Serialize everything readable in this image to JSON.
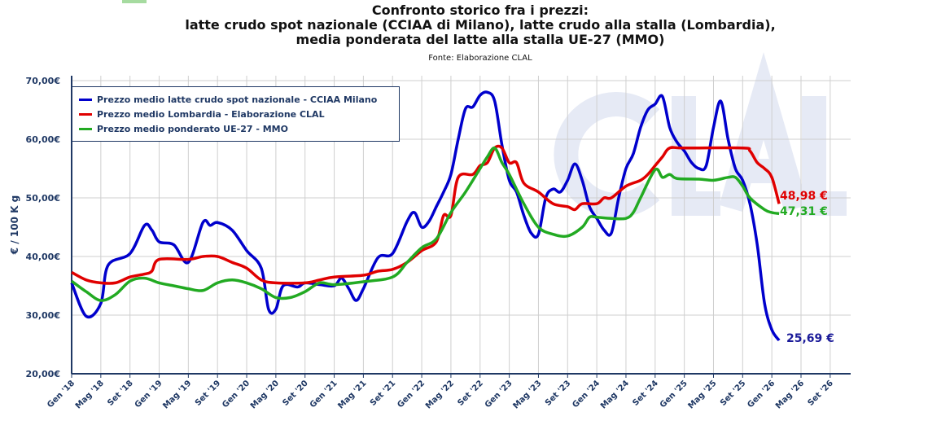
{
  "title_lines": [
    "Confronto storico fra i prezzi:",
    "latte crudo spot nazionale (CCIAA di Milano), latte crudo alla stalla (Lombardia),",
    "media ponderata del latte alla stalla UE-27 (MMO)"
  ],
  "source": "Fonte: Elaborazione CLAL",
  "watermark": "CLAL",
  "chart_data": {
    "type": "line",
    "title": "Confronto storico fra i prezzi: latte crudo spot nazionale (CCIAA di Milano), latte crudo alla stalla (Lombardia), media ponderata del latte alla stalla UE-27 (MMO)",
    "ylabel": "€ / 100 K g",
    "xlabel": "",
    "ylim": [
      20,
      70
    ],
    "xlim": [
      "2018-01",
      "2026-12"
    ],
    "grid": true,
    "legend_position": "top-left",
    "y_ticks": [
      "20,00€",
      "30,00€",
      "40,00€",
      "50,00€",
      "60,00€",
      "70,00€"
    ],
    "x_ticks": [
      "Gen '18",
      "Mag '18",
      "Set '18",
      "Gen '19",
      "Mag '19",
      "Set '19",
      "Gen '20",
      "Mag '20",
      "Set '20",
      "Gen '21",
      "Mag '21",
      "Set '21",
      "Gen '22",
      "Mag '22",
      "Set '22",
      "Gen '23",
      "Mag '23",
      "Set '23",
      "Gen '24",
      "Mag '24",
      "Set '24",
      "Gen '25",
      "Mag '25",
      "Set '25",
      "Gen '26",
      "Mag '26",
      "Set '26"
    ],
    "series": [
      {
        "name": "Prezzo medio latte crudo spot nazionale - CCIAA Milano",
        "color": "#0000cc",
        "end_label": "25,69 €",
        "points": [
          [
            "2018-01",
            35.5
          ],
          [
            "2018-03",
            29.8
          ],
          [
            "2018-05",
            32
          ],
          [
            "2018-06",
            38.5
          ],
          [
            "2018-09",
            40.5
          ],
          [
            "2018-11",
            45.3
          ],
          [
            "2018-12",
            44.5
          ],
          [
            "2019-01",
            42.5
          ],
          [
            "2019-03",
            42
          ],
          [
            "2019-05",
            39
          ],
          [
            "2019-07",
            45.8
          ],
          [
            "2019-08",
            45.3
          ],
          [
            "2019-09",
            45.8
          ],
          [
            "2019-11",
            44.5
          ],
          [
            "2020-01",
            41
          ],
          [
            "2020-03",
            38
          ],
          [
            "2020-04",
            31
          ],
          [
            "2020-05",
            31
          ],
          [
            "2020-06",
            35
          ],
          [
            "2020-08",
            34.8
          ],
          [
            "2020-09",
            35.5
          ],
          [
            "2020-11",
            35.2
          ],
          [
            "2021-01",
            35
          ],
          [
            "2021-02",
            36.3
          ],
          [
            "2021-03",
            34.5
          ],
          [
            "2021-04",
            32.5
          ],
          [
            "2021-05",
            34.5
          ],
          [
            "2021-07",
            39.8
          ],
          [
            "2021-09",
            40.5
          ],
          [
            "2021-11",
            46
          ],
          [
            "2021-12",
            47.5
          ],
          [
            "2022-01",
            45
          ],
          [
            "2022-02",
            46
          ],
          [
            "2022-03",
            48.5
          ],
          [
            "2022-04",
            51
          ],
          [
            "2022-05",
            54
          ],
          [
            "2022-06",
            60
          ],
          [
            "2022-07",
            65.2
          ],
          [
            "2022-08",
            65.5
          ],
          [
            "2022-09",
            67.5
          ],
          [
            "2022-10",
            68
          ],
          [
            "2022-11",
            66.5
          ],
          [
            "2022-12",
            59
          ],
          [
            "2023-01",
            53
          ],
          [
            "2023-02",
            51
          ],
          [
            "2023-03",
            47
          ],
          [
            "2023-04",
            44
          ],
          [
            "2023-05",
            43.8
          ],
          [
            "2023-06",
            50
          ],
          [
            "2023-07",
            51.5
          ],
          [
            "2023-08",
            51
          ],
          [
            "2023-09",
            53
          ],
          [
            "2023-10",
            55.8
          ],
          [
            "2023-11",
            53
          ],
          [
            "2023-12",
            48.5
          ],
          [
            "2024-01",
            46.5
          ],
          [
            "2024-02",
            44.5
          ],
          [
            "2024-03",
            44
          ],
          [
            "2024-04",
            50
          ],
          [
            "2024-05",
            55
          ],
          [
            "2024-06",
            57.5
          ],
          [
            "2024-07",
            62
          ],
          [
            "2024-08",
            65
          ],
          [
            "2024-09",
            66
          ],
          [
            "2024-10",
            67.3
          ],
          [
            "2024-11",
            62
          ],
          [
            "2024-12",
            59.5
          ],
          [
            "2025-01",
            58
          ],
          [
            "2025-02",
            56
          ],
          [
            "2025-03",
            55
          ],
          [
            "2025-04",
            55.5
          ],
          [
            "2025-05",
            62
          ],
          [
            "2025-06",
            66.5
          ],
          [
            "2025-07",
            60
          ],
          [
            "2025-08",
            55
          ],
          [
            "2025-09",
            53
          ],
          [
            "2025-10",
            49
          ],
          [
            "2025-11",
            42
          ],
          [
            "2025-12",
            32
          ],
          [
            "2026-01",
            27.5
          ],
          [
            "2026-02",
            25.69
          ]
        ]
      },
      {
        "name": "Prezzo medio Lombardia - Elaborazione CLAL",
        "color": "#e00000",
        "end_label": "48,98 €",
        "points": [
          [
            "2018-01",
            37.3
          ],
          [
            "2018-03",
            36
          ],
          [
            "2018-05",
            35.5
          ],
          [
            "2018-07",
            35.5
          ],
          [
            "2018-09",
            36.5
          ],
          [
            "2018-11",
            37
          ],
          [
            "2018-12",
            37.5
          ],
          [
            "2019-01",
            39.5
          ],
          [
            "2019-05",
            39.5
          ],
          [
            "2019-07",
            40
          ],
          [
            "2019-09",
            40
          ],
          [
            "2019-11",
            39
          ],
          [
            "2020-01",
            38
          ],
          [
            "2020-03",
            36
          ],
          [
            "2020-05",
            35.5
          ],
          [
            "2020-09",
            35.5
          ],
          [
            "2020-11",
            36
          ],
          [
            "2021-01",
            36.5
          ],
          [
            "2021-05",
            36.8
          ],
          [
            "2021-07",
            37.5
          ],
          [
            "2021-09",
            37.8
          ],
          [
            "2021-11",
            39
          ],
          [
            "2022-01",
            41
          ],
          [
            "2022-03",
            42.5
          ],
          [
            "2022-04",
            47
          ],
          [
            "2022-05",
            47
          ],
          [
            "2022-06",
            53.5
          ],
          [
            "2022-08",
            54
          ],
          [
            "2022-09",
            55.5
          ],
          [
            "2022-10",
            56
          ],
          [
            "2022-11",
            58.5
          ],
          [
            "2022-12",
            58.5
          ],
          [
            "2023-01",
            56
          ],
          [
            "2023-02",
            56
          ],
          [
            "2023-03",
            52.5
          ],
          [
            "2023-05",
            51
          ],
          [
            "2023-07",
            49
          ],
          [
            "2023-09",
            48.5
          ],
          [
            "2023-10",
            48
          ],
          [
            "2023-11",
            49
          ],
          [
            "2024-01",
            49
          ],
          [
            "2024-02",
            50
          ],
          [
            "2024-03",
            50
          ],
          [
            "2024-05",
            52
          ],
          [
            "2024-07",
            53
          ],
          [
            "2024-08",
            54
          ],
          [
            "2024-09",
            55.5
          ],
          [
            "2024-10",
            57
          ],
          [
            "2024-11",
            58.5
          ],
          [
            "2025-01",
            58.5
          ],
          [
            "2025-09",
            58.5
          ],
          [
            "2025-10",
            58
          ],
          [
            "2025-11",
            56
          ],
          [
            "2025-12",
            55
          ],
          [
            "2026-01",
            53.5
          ],
          [
            "2026-02",
            48.98
          ]
        ]
      },
      {
        "name": "Prezzo medio ponderato UE-27 - MMO",
        "color": "#22aa22",
        "end_label": "47,31 €",
        "points": [
          [
            "2018-01",
            35.8
          ],
          [
            "2018-03",
            34
          ],
          [
            "2018-05",
            32.5
          ],
          [
            "2018-07",
            33.5
          ],
          [
            "2018-09",
            35.8
          ],
          [
            "2018-11",
            36.3
          ],
          [
            "2019-01",
            35.5
          ],
          [
            "2019-03",
            35
          ],
          [
            "2019-05",
            34.5
          ],
          [
            "2019-07",
            34.2
          ],
          [
            "2019-09",
            35.5
          ],
          [
            "2019-11",
            36
          ],
          [
            "2020-01",
            35.5
          ],
          [
            "2020-03",
            34.5
          ],
          [
            "2020-05",
            33
          ],
          [
            "2020-07",
            33
          ],
          [
            "2020-09",
            34
          ],
          [
            "2020-11",
            35.5
          ],
          [
            "2021-01",
            35.2
          ],
          [
            "2021-05",
            35.7
          ],
          [
            "2021-09",
            36.5
          ],
          [
            "2021-11",
            39
          ],
          [
            "2022-01",
            41.5
          ],
          [
            "2022-03",
            43
          ],
          [
            "2022-05",
            47.5
          ],
          [
            "2022-07",
            51
          ],
          [
            "2022-09",
            55
          ],
          [
            "2022-10",
            57
          ],
          [
            "2022-11",
            58.5
          ],
          [
            "2022-12",
            56
          ],
          [
            "2023-01",
            54
          ],
          [
            "2023-03",
            49
          ],
          [
            "2023-05",
            45
          ],
          [
            "2023-07",
            43.8
          ],
          [
            "2023-09",
            43.5
          ],
          [
            "2023-11",
            45
          ],
          [
            "2023-12",
            46.7
          ],
          [
            "2024-01",
            46.7
          ],
          [
            "2024-03",
            46.5
          ],
          [
            "2024-05",
            46.5
          ],
          [
            "2024-06",
            47.5
          ],
          [
            "2024-07",
            50
          ],
          [
            "2024-09",
            54.8
          ],
          [
            "2024-10",
            53.5
          ],
          [
            "2024-11",
            54
          ],
          [
            "2024-12",
            53.3
          ],
          [
            "2025-03",
            53.2
          ],
          [
            "2025-05",
            53
          ],
          [
            "2025-07",
            53.5
          ],
          [
            "2025-08",
            53.5
          ],
          [
            "2025-09",
            52
          ],
          [
            "2025-10",
            50
          ],
          [
            "2025-12",
            48
          ],
          [
            "2026-01",
            47.5
          ],
          [
            "2026-02",
            47.31
          ]
        ]
      }
    ]
  }
}
